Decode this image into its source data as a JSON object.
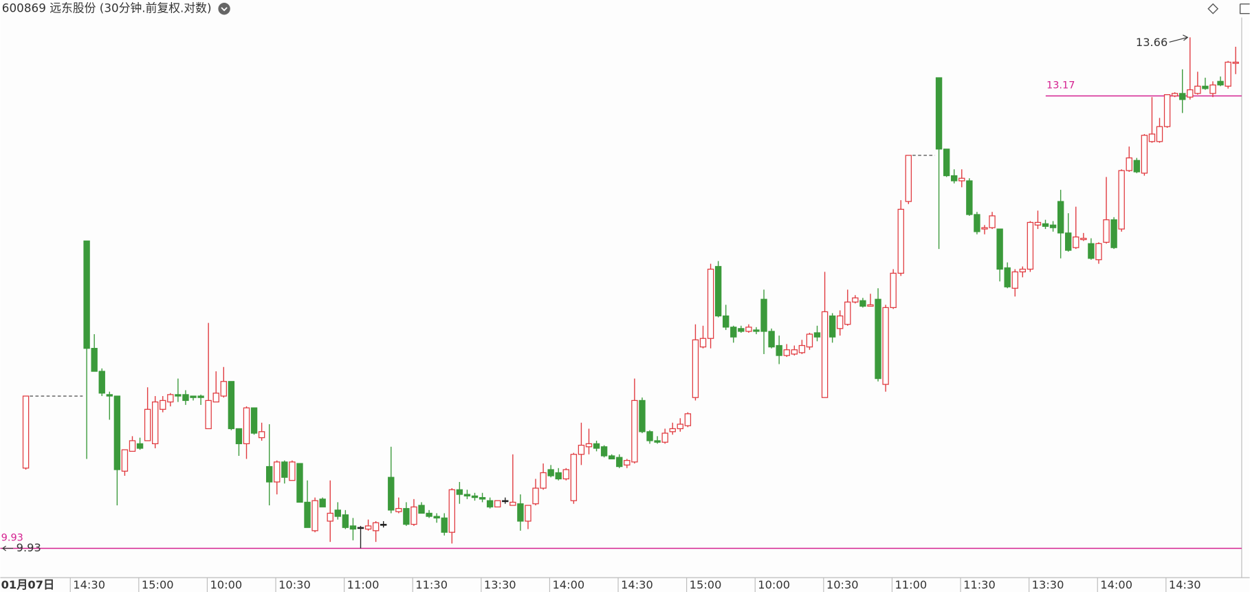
{
  "chart_data": {
    "type": "candlestick",
    "title": "600869 远东股份 (30分钟.前复权.对数)",
    "log_scale": true,
    "up_color": "#e0393e",
    "down_color": "#3b9a3b",
    "line_color": "#d4208f",
    "ylim": [
      9.75,
      13.83
    ],
    "hlines": [
      13.17,
      9.93
    ],
    "high_mark": 13.66,
    "low_mark": 9.93,
    "categories": [
      "01月07日",
      null,
      null,
      null,
      null,
      null,
      "14:30",
      null,
      null,
      null,
      null,
      null,
      null,
      null,
      null,
      "15:00",
      null,
      null,
      null,
      null,
      null,
      null,
      null,
      null,
      "10:00",
      null,
      null,
      null,
      null,
      null,
      null,
      null,
      null,
      "10:30",
      null,
      null,
      null,
      null,
      null,
      null,
      null,
      null,
      "11:00",
      null,
      null,
      null,
      null,
      null,
      null,
      null,
      null,
      "11:30",
      null,
      null,
      null,
      null,
      null,
      null,
      null,
      null,
      "13:30",
      null,
      null,
      null,
      null,
      null,
      null,
      null,
      null,
      "14:00",
      null,
      null,
      null,
      null,
      null,
      null,
      null,
      null,
      "14:30",
      null,
      null,
      null,
      null,
      null,
      null,
      null,
      null,
      "15:00",
      null,
      null,
      null,
      null,
      null,
      null,
      null,
      null,
      "10:00",
      null,
      null,
      null,
      null,
      null,
      null,
      null,
      null,
      "10:30",
      null,
      null,
      null,
      null,
      null,
      null,
      null,
      null,
      "11:00",
      null,
      null,
      null,
      null,
      null,
      null,
      null,
      null,
      "11:30",
      null,
      null,
      null,
      null,
      null,
      null,
      null,
      null,
      "13:30",
      null,
      null,
      null,
      null,
      null,
      null,
      null,
      null,
      "14:00",
      null,
      null,
      null,
      null,
      null,
      null,
      null,
      null,
      "14:30",
      null,
      null,
      null,
      null,
      null,
      null,
      null,
      null,
      null
    ],
    "open": [
      10.44,
      null,
      null,
      null,
      null,
      null,
      null,
      null,
      12.03,
      11.25,
      11.09,
      10.93,
      10.92,
      10.42,
      10.55,
      10.6,
      10.62,
      10.6,
      10.83,
      10.88,
      10.93,
      10.93,
      10.92,
      10.92,
      10.7,
      10.88,
      10.92,
      11.02,
      10.7,
      10.6,
      10.84,
      10.64,
      10.45,
      10.35,
      10.48,
      10.36,
      10.47,
      10.22,
      10.04,
      10.24,
      10.1,
      10.17,
      10.14,
      10.07,
      10.06,
      10.05,
      10.04,
      10.08,
      10.38,
      10.16,
      10.18,
      10.08,
      10.2,
      10.15,
      10.13,
      10.12,
      10.03,
      10.3,
      10.27,
      10.26,
      10.25,
      10.23,
      10.19,
      10.23,
      10.2,
      10.21,
      10.1,
      10.21,
      10.31,
      10.43,
      10.41,
      10.37,
      10.23,
      10.53,
      10.58,
      10.6,
      10.58,
      10.52,
      10.51,
      10.46,
      10.48,
      10.89,
      10.68,
      10.62,
      10.61,
      10.68,
      10.7,
      10.72,
      10.91,
      11.26,
      11.32,
      11.84,
      11.48,
      11.4,
      11.39,
      11.37,
      11.38,
      11.6,
      11.37,
      11.27,
      11.2,
      11.21,
      11.22,
      11.26,
      11.36,
      10.91,
      11.48,
      11.39,
      11.42,
      11.58,
      11.59,
      11.55,
      11.6,
      11.0,
      11.54,
      11.79,
      12.33,
      null,
      null,
      null,
      13.32,
      12.74,
      12.53,
      12.49,
      12.49,
      12.23,
      12.12,
      12.13,
      12.12,
      11.83,
      11.68,
      11.8,
      11.82,
      12.15,
      12.16,
      12.15,
      12.33,
      12.09,
      11.98,
      12.04,
      12.01,
      11.89,
      12.02,
      12.19,
      12.12,
      12.57,
      12.65,
      12.55,
      12.8,
      12.8,
      12.92,
      13.17,
      13.19,
      13.16,
      13.19,
      13.25,
      13.19,
      13.29,
      13.25,
      13.44
    ],
    "high": [
      10.92,
      null,
      null,
      null,
      null,
      null,
      null,
      null,
      12.03,
      11.35,
      11.11,
      10.95,
      10.92,
      10.56,
      10.65,
      10.64,
      10.98,
      10.92,
      10.92,
      10.94,
      11.04,
      10.96,
      10.92,
      10.93,
      11.43,
      11.09,
      11.12,
      11.02,
      10.7,
      10.85,
      10.84,
      10.74,
      10.73,
      10.49,
      10.49,
      10.49,
      10.47,
      10.36,
      10.25,
      10.25,
      10.36,
      10.22,
      10.17,
      10.12,
      10.07,
      10.11,
      10.1,
      10.1,
      10.58,
      10.25,
      10.22,
      10.24,
      10.22,
      10.17,
      10.15,
      10.15,
      10.31,
      10.35,
      10.3,
      10.28,
      10.28,
      10.25,
      10.23,
      10.25,
      10.53,
      10.27,
      10.2,
      10.37,
      10.47,
      10.46,
      10.44,
      10.44,
      10.54,
      10.74,
      10.7,
      10.62,
      10.59,
      10.53,
      10.53,
      10.5,
      11.04,
      10.91,
      10.69,
      10.65,
      10.7,
      10.74,
      10.77,
      10.81,
      11.42,
      11.41,
      11.86,
      11.88,
      11.56,
      11.41,
      11.41,
      11.42,
      11.4,
      11.67,
      11.39,
      11.34,
      11.28,
      11.27,
      11.31,
      11.36,
      11.41,
      11.8,
      11.5,
      11.52,
      11.67,
      11.63,
      11.61,
      11.64,
      11.68,
      11.56,
      11.82,
      12.34,
      12.69,
      null,
      null,
      null,
      13.32,
      12.74,
      12.58,
      12.58,
      12.51,
      12.25,
      12.15,
      12.25,
      12.12,
      11.87,
      11.82,
      11.84,
      12.18,
      12.26,
      12.19,
      12.18,
      12.42,
      12.24,
      12.29,
      12.09,
      12.05,
      12.02,
      12.52,
      12.21,
      12.58,
      12.76,
      12.67,
      12.86,
      13.16,
      12.99,
      13.18,
      13.2,
      13.39,
      13.66,
      13.37,
      13.32,
      13.29,
      13.33,
      13.46,
      13.58
    ],
    "low": [
      10.43,
      null,
      null,
      null,
      null,
      null,
      null,
      null,
      10.5,
      11.09,
      10.92,
      10.76,
      10.2,
      10.39,
      10.55,
      10.56,
      10.62,
      10.57,
      10.81,
      10.85,
      10.88,
      10.86,
      10.89,
      10.86,
      10.7,
      10.88,
      10.91,
      10.69,
      10.52,
      10.5,
      10.66,
      10.62,
      10.2,
      10.27,
      10.34,
      10.36,
      10.22,
      10.06,
      10.03,
      10.19,
      9.97,
      10.11,
      10.05,
      9.98,
      9.93,
      10.04,
      9.97,
      10.06,
      10.15,
      10.15,
      10.07,
      10.07,
      10.15,
      10.12,
      10.09,
      10.01,
      9.96,
      10.21,
      10.24,
      10.23,
      10.22,
      10.18,
      10.19,
      10.21,
      10.2,
      10.04,
      10.05,
      10.2,
      10.3,
      10.38,
      10.36,
      10.36,
      10.21,
      10.46,
      10.53,
      10.55,
      10.51,
      10.5,
      10.44,
      10.44,
      10.47,
      10.67,
      10.6,
      10.6,
      10.6,
      10.66,
      10.68,
      10.71,
      10.89,
      11.25,
      11.25,
      11.47,
      11.38,
      11.29,
      11.36,
      11.36,
      11.35,
      11.21,
      11.25,
      11.14,
      11.19,
      11.2,
      11.21,
      11.24,
      11.3,
      10.91,
      11.29,
      11.34,
      11.41,
      11.57,
      11.54,
      11.55,
      11.02,
      10.95,
      11.53,
      11.77,
      12.31,
      null,
      null,
      null,
      11.97,
      12.52,
      12.47,
      12.44,
      12.22,
      12.08,
      12.08,
      12.12,
      11.73,
      11.68,
      11.62,
      11.76,
      11.8,
      12.12,
      12.12,
      12.1,
      11.9,
      11.95,
      11.97,
      12.03,
      11.89,
      11.86,
      12.01,
      11.97,
      12.1,
      12.56,
      12.55,
      12.53,
      12.79,
      12.79,
      12.91,
      13.16,
      13.03,
      13.14,
      13.18,
      13.22,
      13.16,
      13.25,
      13.23,
      13.35
    ],
    "close": [
      10.92,
      null,
      null,
      null,
      null,
      null,
      null,
      null,
      11.25,
      11.09,
      10.94,
      10.92,
      10.43,
      10.56,
      10.62,
      10.57,
      10.83,
      10.88,
      10.89,
      10.93,
      10.92,
      10.89,
      10.91,
      10.91,
      10.89,
      10.94,
      11.02,
      10.7,
      10.6,
      10.84,
      10.67,
      10.68,
      10.35,
      10.48,
      10.38,
      10.48,
      10.22,
      10.06,
      10.23,
      10.19,
      10.15,
      10.13,
      10.06,
      10.05,
      10.06,
      10.07,
      10.09,
      10.08,
      10.17,
      10.18,
      10.08,
      10.19,
      10.15,
      10.13,
      10.12,
      10.03,
      10.3,
      10.27,
      10.26,
      10.25,
      10.24,
      10.19,
      10.23,
      10.23,
      10.22,
      10.1,
      10.2,
      10.31,
      10.41,
      10.39,
      10.37,
      10.43,
      10.53,
      10.59,
      10.6,
      10.57,
      10.52,
      10.5,
      10.45,
      10.49,
      10.89,
      10.68,
      10.62,
      10.61,
      10.67,
      10.7,
      10.73,
      10.8,
      11.31,
      11.32,
      11.82,
      11.48,
      11.4,
      11.33,
      11.37,
      11.4,
      11.37,
      11.37,
      11.26,
      11.2,
      11.24,
      11.24,
      11.27,
      11.35,
      11.33,
      11.51,
      11.33,
      11.48,
      11.58,
      11.61,
      11.55,
      11.56,
      11.04,
      11.54,
      11.79,
      12.27,
      12.69,
      null,
      null,
      null,
      12.74,
      12.53,
      12.49,
      12.51,
      12.23,
      12.1,
      12.13,
      12.22,
      11.82,
      11.69,
      11.8,
      11.82,
      12.17,
      12.17,
      12.14,
      12.13,
      12.09,
      11.96,
      12.06,
      12.05,
      11.9,
      12.01,
      12.19,
      11.98,
      12.57,
      12.67,
      12.56,
      12.85,
      12.86,
      12.92,
      13.18,
      13.19,
      13.14,
      13.22,
      13.25,
      13.23,
      13.26,
      13.26,
      13.45,
      13.45
    ]
  }
}
